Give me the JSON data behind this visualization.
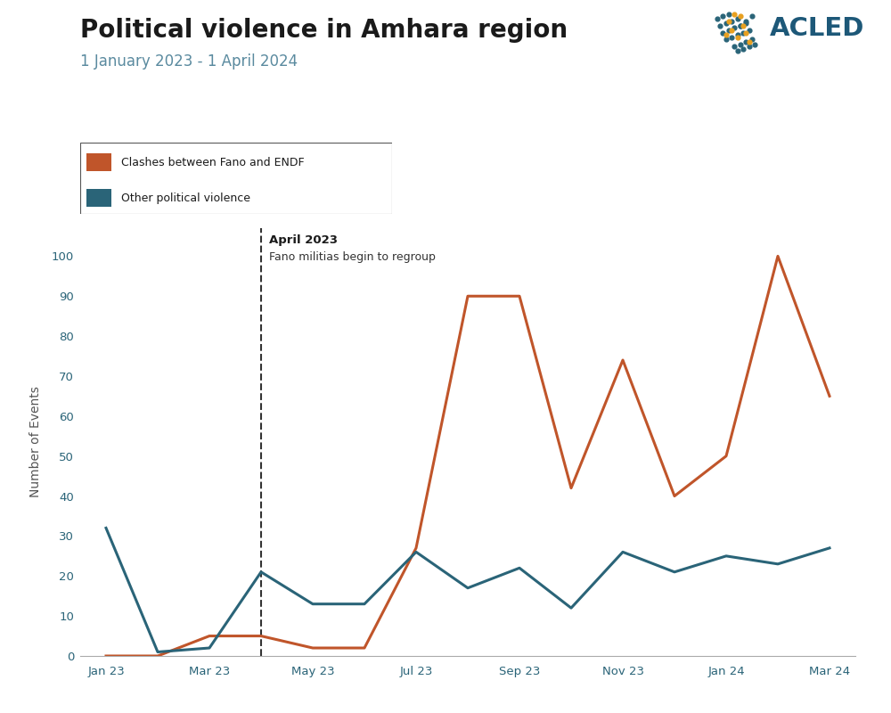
{
  "title": "Political violence in Amhara region",
  "subtitle": "1 January 2023 - 1 April 2024",
  "title_color": "#1a1a1a",
  "subtitle_color": "#5a8a9f",
  "ylabel": "Number of Events",
  "background_color": "#ffffff",
  "x_labels": [
    "Jan 23",
    "Mar 23",
    "May 23",
    "Jul 23",
    "Sep 23",
    "Nov 23",
    "Jan 24",
    "Mar 24"
  ],
  "x_positions": [
    0,
    2,
    4,
    6,
    8,
    10,
    12,
    14
  ],
  "orange_label": "Clashes between Fano and ENDF",
  "teal_label": "Other political violence",
  "orange_color": "#c0552a",
  "teal_color": "#2a6478",
  "orange_data_x": [
    0,
    1,
    2,
    3,
    4,
    5,
    6,
    7,
    8,
    9,
    10,
    11,
    12,
    13,
    14
  ],
  "orange_data_y": [
    0,
    0,
    5,
    5,
    2,
    2,
    27,
    90,
    90,
    42,
    74,
    40,
    50,
    100,
    65
  ],
  "teal_data_x": [
    0,
    1,
    2,
    3,
    4,
    5,
    6,
    7,
    8,
    9,
    10,
    11,
    12,
    13,
    14
  ],
  "teal_data_y": [
    32,
    1,
    2,
    21,
    13,
    13,
    26,
    17,
    22,
    12,
    26,
    21,
    25,
    23,
    27
  ],
  "vline_x": 3,
  "vline_label_bold": "April 2023",
  "vline_label_normal": "Fano militias begin to regroup",
  "ylim": [
    0,
    107
  ],
  "yticks": [
    0,
    10,
    20,
    30,
    40,
    50,
    60,
    70,
    80,
    90,
    100
  ],
  "acled_text_color": "#1d5878",
  "tick_label_color": "#2a6478",
  "line_width": 2.2
}
